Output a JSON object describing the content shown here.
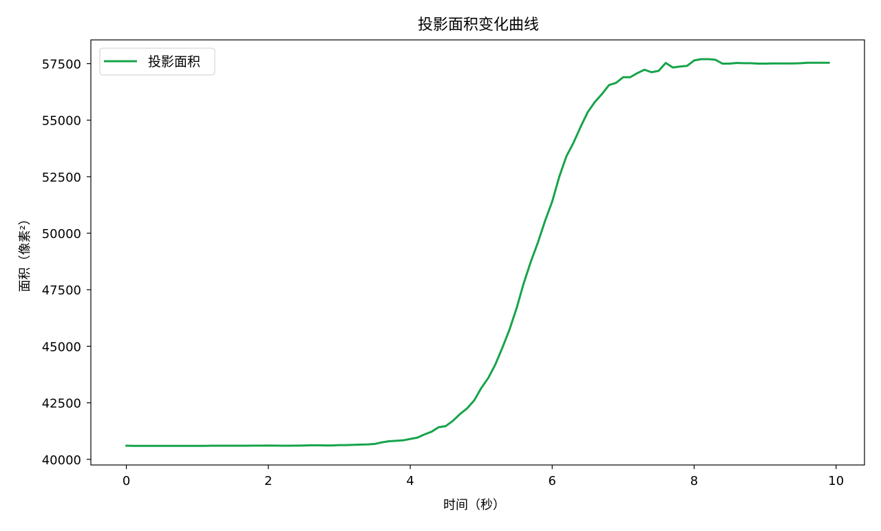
{
  "chart_data": {
    "type": "line",
    "title": "投影面积变化曲线",
    "xlabel": "时间（秒）",
    "ylabel": "面积（像素²）",
    "xlim": [
      -0.5,
      10.4
    ],
    "ylim": [
      39750,
      58550
    ],
    "xticks": [
      0,
      2,
      4,
      6,
      8,
      10
    ],
    "xtick_labels": [
      "0",
      "2",
      "4",
      "6",
      "8",
      "10"
    ],
    "yticks": [
      40000,
      42500,
      45000,
      47500,
      50000,
      52500,
      55000,
      57500
    ],
    "ytick_labels": [
      "40000",
      "42500",
      "45000",
      "47500",
      "50000",
      "52500",
      "55000",
      "57500"
    ],
    "grid": false,
    "legend_position": "upper-left",
    "series": [
      {
        "name": "投影面积",
        "color": "#16a34a",
        "x": [
          0.0,
          0.1,
          0.2,
          0.3,
          0.4,
          0.5,
          0.6,
          0.7,
          0.8,
          0.9,
          1.0,
          1.1,
          1.2,
          1.3,
          1.4,
          1.5,
          1.6,
          1.7,
          1.8,
          1.9,
          2.0,
          2.1,
          2.2,
          2.3,
          2.4,
          2.5,
          2.6,
          2.7,
          2.8,
          2.9,
          3.0,
          3.1,
          3.2,
          3.3,
          3.4,
          3.5,
          3.6,
          3.7,
          3.8,
          3.9,
          4.0,
          4.1,
          4.2,
          4.3,
          4.4,
          4.5,
          4.6,
          4.7,
          4.8,
          4.9,
          5.0,
          5.1,
          5.2,
          5.3,
          5.4,
          5.5,
          5.6,
          5.7,
          5.8,
          5.9,
          6.0,
          6.1,
          6.2,
          6.3,
          6.4,
          6.5,
          6.6,
          6.7,
          6.8,
          6.9,
          7.0,
          7.1,
          7.2,
          7.3,
          7.4,
          7.5,
          7.6,
          7.7,
          7.8,
          7.9,
          8.0,
          8.1,
          8.2,
          8.3,
          8.4,
          8.5,
          8.6,
          8.7,
          8.8,
          8.9,
          9.0,
          9.1,
          9.2,
          9.3,
          9.4,
          9.5,
          9.6,
          9.7,
          9.8,
          9.9
        ],
        "y": [
          40600,
          40595,
          40595,
          40595,
          40595,
          40595,
          40595,
          40595,
          40595,
          40595,
          40595,
          40595,
          40600,
          40600,
          40600,
          40600,
          40600,
          40600,
          40605,
          40605,
          40610,
          40605,
          40600,
          40600,
          40605,
          40610,
          40620,
          40620,
          40615,
          40615,
          40630,
          40630,
          40640,
          40650,
          40660,
          40680,
          40750,
          40800,
          40820,
          40840,
          40900,
          40960,
          41100,
          41220,
          41420,
          41470,
          41700,
          42000,
          42250,
          42600,
          43150,
          43600,
          44200,
          44950,
          45750,
          46700,
          47800,
          48750,
          49600,
          50550,
          51400,
          52500,
          53400,
          54000,
          54700,
          55350,
          55800,
          56150,
          56550,
          56650,
          56900,
          56900,
          57080,
          57230,
          57120,
          57180,
          57530,
          57330,
          57370,
          57400,
          57640,
          57700,
          57700,
          57670,
          57500,
          57500,
          57530,
          57520,
          57520,
          57500,
          57500,
          57510,
          57510,
          57510,
          57510,
          57520,
          57540,
          57540,
          57540,
          57540
        ]
      }
    ]
  }
}
